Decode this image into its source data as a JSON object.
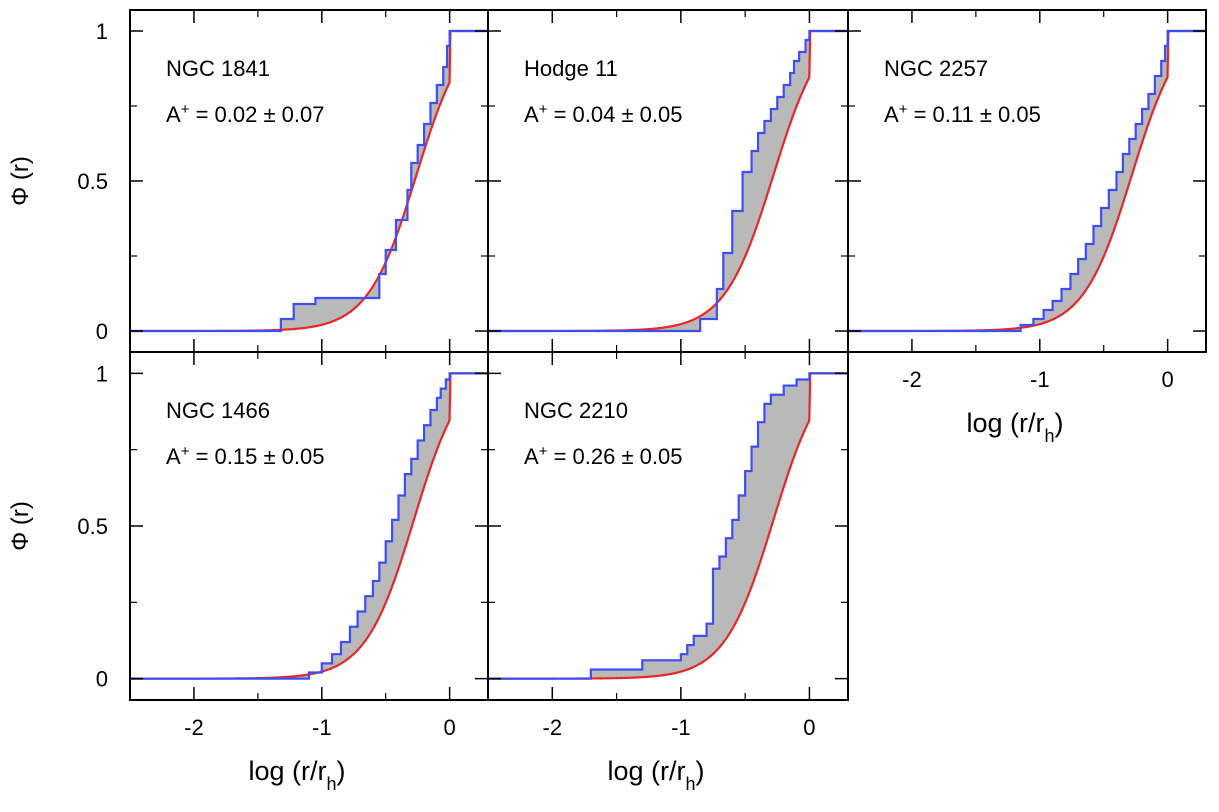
{
  "figure": {
    "panel_label_prefix": "A",
    "panel_label_superscript": "+",
    "x_axis_label": "log (r/r",
    "x_axis_label_subscript": "h",
    "x_axis_label_suffix": ")",
    "y_axis_label": "Φ (r)",
    "colors": {
      "observed_cdf": "#3d4ff2",
      "model_cdf": "#ea2626",
      "shaded_area": "#b9b9b9",
      "frame": "#000000"
    }
  },
  "chart_data": [
    {
      "type": "line",
      "title": "NGC 1841",
      "stat": "= 0.02 ± 0.07",
      "xlim": [
        -2.5,
        0.3
      ],
      "ylim": [
        -0.07,
        1.07
      ],
      "xticks": [
        -2,
        -1,
        0
      ],
      "yticks": [
        0,
        0.5,
        1
      ],
      "xtick_labels": [
        "-2",
        "-1",
        "0"
      ],
      "ytick_labels": [
        "0",
        "0.5",
        "1"
      ],
      "show_x_labels": false,
      "show_y_labels": true,
      "model_shift": 0.02,
      "series": [
        {
          "role": "observed",
          "style": "step",
          "x": [
            -2.5,
            -1.35,
            -1.32,
            -1.22,
            -1.05,
            -0.96,
            -0.85,
            -0.74,
            -0.55,
            -0.5,
            -0.42,
            -0.33,
            -0.3,
            -0.25,
            -0.2,
            -0.15,
            -0.1,
            -0.05,
            -0.02,
            0,
            0.3
          ],
          "y": [
            0,
            0,
            0.04,
            0.09,
            0.11,
            0.11,
            0.11,
            0.11,
            0.19,
            0.27,
            0.37,
            0.47,
            0.56,
            0.62,
            0.69,
            0.76,
            0.82,
            0.88,
            0.95,
            1.0,
            1.0
          ]
        },
        {
          "role": "model",
          "style": "smooth"
        }
      ]
    },
    {
      "type": "line",
      "title": "Hodge 11",
      "stat": "= 0.04 ± 0.05",
      "xlim": [
        -2.5,
        0.3
      ],
      "ylim": [
        -0.07,
        1.07
      ],
      "xticks": [
        -2,
        -1,
        0
      ],
      "yticks": [
        0,
        0.5,
        1
      ],
      "xtick_labels": [
        "-2",
        "-1",
        "0"
      ],
      "ytick_labels": [
        "0",
        "0.5",
        "1"
      ],
      "show_x_labels": false,
      "show_y_labels": false,
      "model_shift": 0.0,
      "series": [
        {
          "role": "observed",
          "style": "step",
          "x": [
            -2.5,
            -0.9,
            -0.85,
            -0.72,
            -0.67,
            -0.6,
            -0.52,
            -0.45,
            -0.4,
            -0.35,
            -0.3,
            -0.25,
            -0.2,
            -0.15,
            -0.12,
            -0.08,
            -0.03,
            0,
            0.3
          ],
          "y": [
            0,
            0,
            0.04,
            0.14,
            0.26,
            0.4,
            0.53,
            0.6,
            0.66,
            0.7,
            0.74,
            0.78,
            0.82,
            0.86,
            0.9,
            0.93,
            0.97,
            1.0,
            1.0
          ]
        },
        {
          "role": "model",
          "style": "smooth"
        }
      ]
    },
    {
      "type": "line",
      "title": "NGC 2257",
      "stat": "= 0.11 ± 0.05",
      "xlim": [
        -2.5,
        0.3
      ],
      "ylim": [
        -0.07,
        1.07
      ],
      "xticks": [
        -2,
        -1,
        0
      ],
      "yticks": [
        0,
        0.5,
        1
      ],
      "xtick_labels": [
        "-2",
        "-1",
        "0"
      ],
      "ytick_labels": [
        "0",
        "0.5",
        "1"
      ],
      "show_x_labels": true,
      "show_y_labels": false,
      "model_shift": 0.0,
      "series": [
        {
          "role": "observed",
          "style": "step",
          "x": [
            -2.5,
            -1.25,
            -1.15,
            -1.05,
            -0.97,
            -0.9,
            -0.83,
            -0.76,
            -0.7,
            -0.64,
            -0.58,
            -0.52,
            -0.46,
            -0.4,
            -0.35,
            -0.3,
            -0.25,
            -0.2,
            -0.15,
            -0.1,
            -0.05,
            -0.02,
            0,
            0.3
          ],
          "y": [
            0,
            0,
            0.02,
            0.04,
            0.07,
            0.1,
            0.14,
            0.19,
            0.24,
            0.29,
            0.35,
            0.41,
            0.47,
            0.53,
            0.59,
            0.64,
            0.69,
            0.74,
            0.79,
            0.85,
            0.9,
            0.95,
            1.0,
            1.0
          ]
        },
        {
          "role": "model",
          "style": "smooth"
        }
      ]
    },
    {
      "type": "line",
      "title": "NGC 1466",
      "stat": "= 0.15 ± 0.05",
      "xlim": [
        -2.5,
        0.3
      ],
      "ylim": [
        -0.07,
        1.07
      ],
      "xticks": [
        -2,
        -1,
        0
      ],
      "yticks": [
        0,
        0.5,
        1
      ],
      "xtick_labels": [
        "-2",
        "-1",
        "0"
      ],
      "ytick_labels": [
        "0",
        "0.5",
        "1"
      ],
      "show_x_labels": true,
      "show_y_labels": true,
      "model_shift": 0.0,
      "series": [
        {
          "role": "observed",
          "style": "step",
          "x": [
            -2.5,
            -1.28,
            -1.1,
            -1.0,
            -0.92,
            -0.85,
            -0.78,
            -0.72,
            -0.66,
            -0.6,
            -0.55,
            -0.5,
            -0.45,
            -0.4,
            -0.35,
            -0.3,
            -0.25,
            -0.2,
            -0.15,
            -0.1,
            -0.07,
            -0.03,
            0,
            0.3
          ],
          "y": [
            0,
            0,
            0.02,
            0.05,
            0.08,
            0.12,
            0.17,
            0.22,
            0.27,
            0.32,
            0.38,
            0.45,
            0.52,
            0.6,
            0.67,
            0.72,
            0.78,
            0.83,
            0.88,
            0.92,
            0.95,
            0.98,
            1.0,
            1.0
          ]
        },
        {
          "role": "model",
          "style": "smooth"
        }
      ]
    },
    {
      "type": "line",
      "title": "NGC 2210",
      "stat": "= 0.26 ± 0.05",
      "xlim": [
        -2.5,
        0.3
      ],
      "ylim": [
        -0.07,
        1.07
      ],
      "xticks": [
        -2,
        -1,
        0
      ],
      "yticks": [
        0,
        0.5,
        1
      ],
      "xtick_labels": [
        "-2",
        "-1",
        "0"
      ],
      "ytick_labels": [
        "0",
        "0.5",
        "1"
      ],
      "show_x_labels": true,
      "show_y_labels": false,
      "model_shift": 0.0,
      "series": [
        {
          "role": "observed",
          "style": "step",
          "x": [
            -2.5,
            -1.85,
            -1.7,
            -1.3,
            -1.0,
            -0.95,
            -0.9,
            -0.8,
            -0.75,
            -0.7,
            -0.65,
            -0.6,
            -0.55,
            -0.5,
            -0.45,
            -0.4,
            -0.35,
            -0.3,
            -0.2,
            -0.1,
            0,
            0.3
          ],
          "y": [
            0,
            0,
            0.03,
            0.06,
            0.08,
            0.11,
            0.14,
            0.18,
            0.36,
            0.4,
            0.46,
            0.52,
            0.6,
            0.68,
            0.76,
            0.84,
            0.9,
            0.93,
            0.96,
            0.98,
            1.0,
            1.0
          ]
        },
        {
          "role": "model",
          "style": "smooth"
        }
      ]
    }
  ]
}
